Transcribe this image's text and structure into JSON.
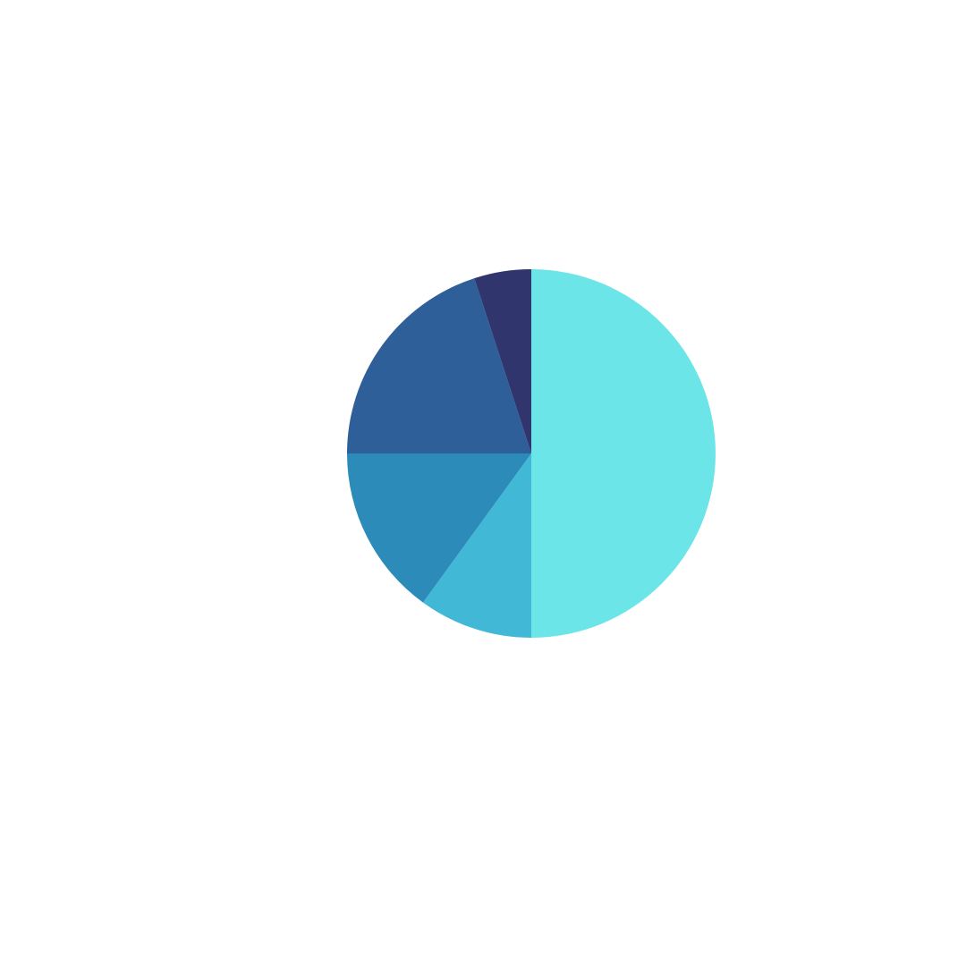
{
  "chart_data": {
    "type": "pie",
    "title": "",
    "start_angle_deg": 0,
    "direction": "clockwise",
    "slices": [
      {
        "label": "",
        "value": 50,
        "color": "#6ce5e8"
      },
      {
        "label": "",
        "value": 10,
        "color": "#41b8d5"
      },
      {
        "label": "",
        "value": 15,
        "color": "#2d8bba"
      },
      {
        "label": "",
        "value": 20,
        "color": "#2f5f98"
      },
      {
        "label": "",
        "value": 5,
        "color": "#31356e"
      }
    ]
  }
}
